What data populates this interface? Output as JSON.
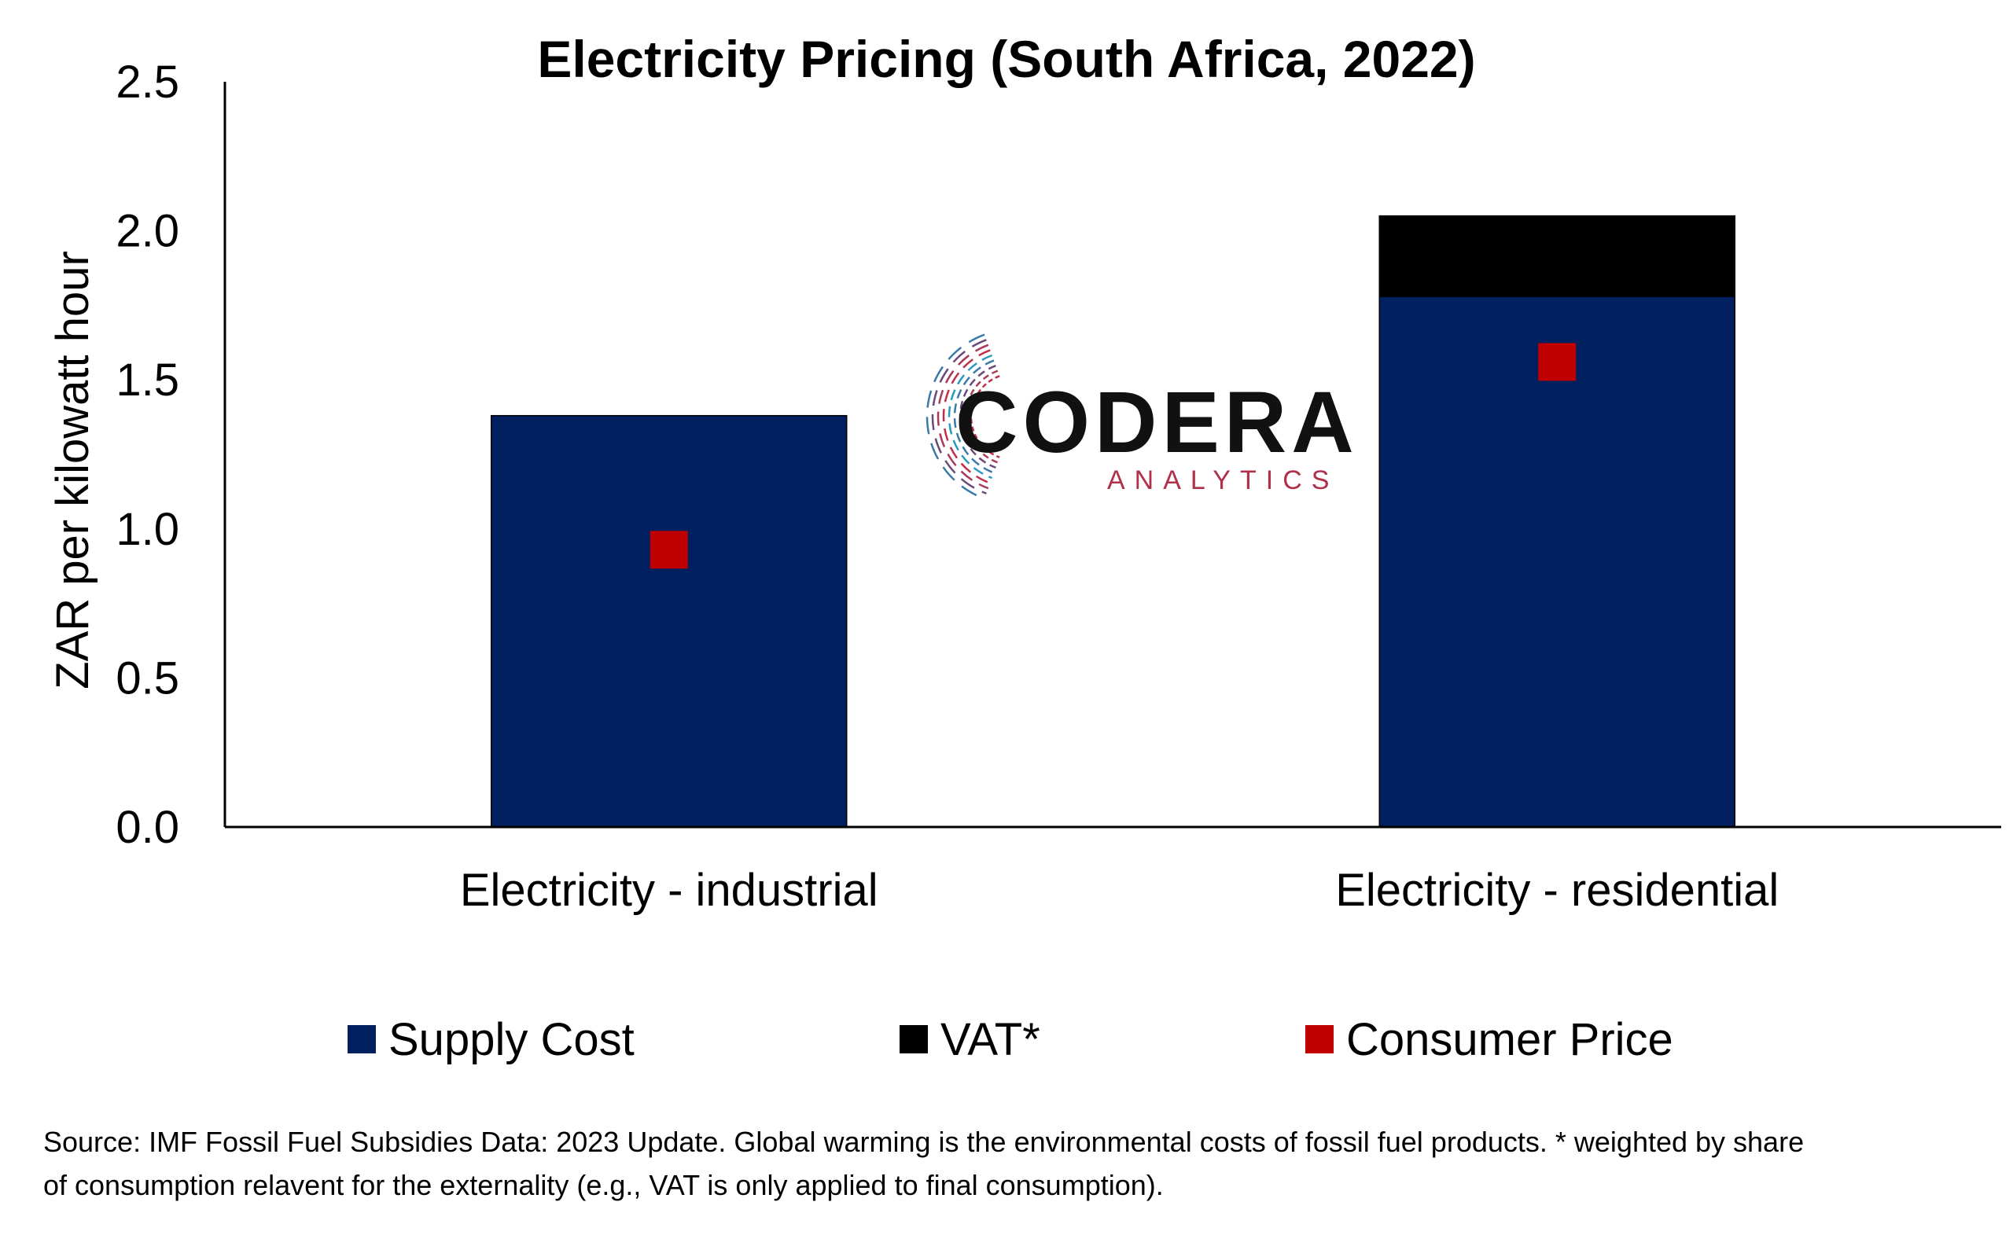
{
  "chart_data": {
    "type": "bar",
    "stacked": true,
    "title": "Electricity Pricing (South Africa, 2022)",
    "xlabel": "",
    "ylabel": "ZAR per kilowatt hour",
    "ylim": [
      0,
      2.5
    ],
    "yticks": [
      "0.0",
      "0.5",
      "1.0",
      "1.5",
      "2.0",
      "2.5"
    ],
    "ytick_values": [
      0,
      0.5,
      1.0,
      1.5,
      2.0,
      2.5
    ],
    "categories": [
      "Electricity - industrial",
      "Electricity - residential"
    ],
    "series": [
      {
        "name": "Supply Cost",
        "type": "bar",
        "color": "#002060",
        "values": [
          1.38,
          1.78
        ]
      },
      {
        "name": "VAT*",
        "type": "bar",
        "color": "#000000",
        "values": [
          0,
          0.27
        ]
      },
      {
        "name": "Consumer Price",
        "type": "marker",
        "color": "#C00000",
        "values": [
          0.93,
          1.56
        ]
      }
    ],
    "legend": "bottom",
    "grid": false,
    "source_note": "Source: IMF Fossil Fuel Subsidies Data: 2023 Update. Global warming is the environmental costs of fossil fuel products. * weighted by share of consumption relavent for the externality (e.g., VAT is only applied to final consumption)."
  },
  "watermark": {
    "name": "CODERA",
    "tagline": "ANALYTICS",
    "tagline_color": "#b0304a"
  }
}
